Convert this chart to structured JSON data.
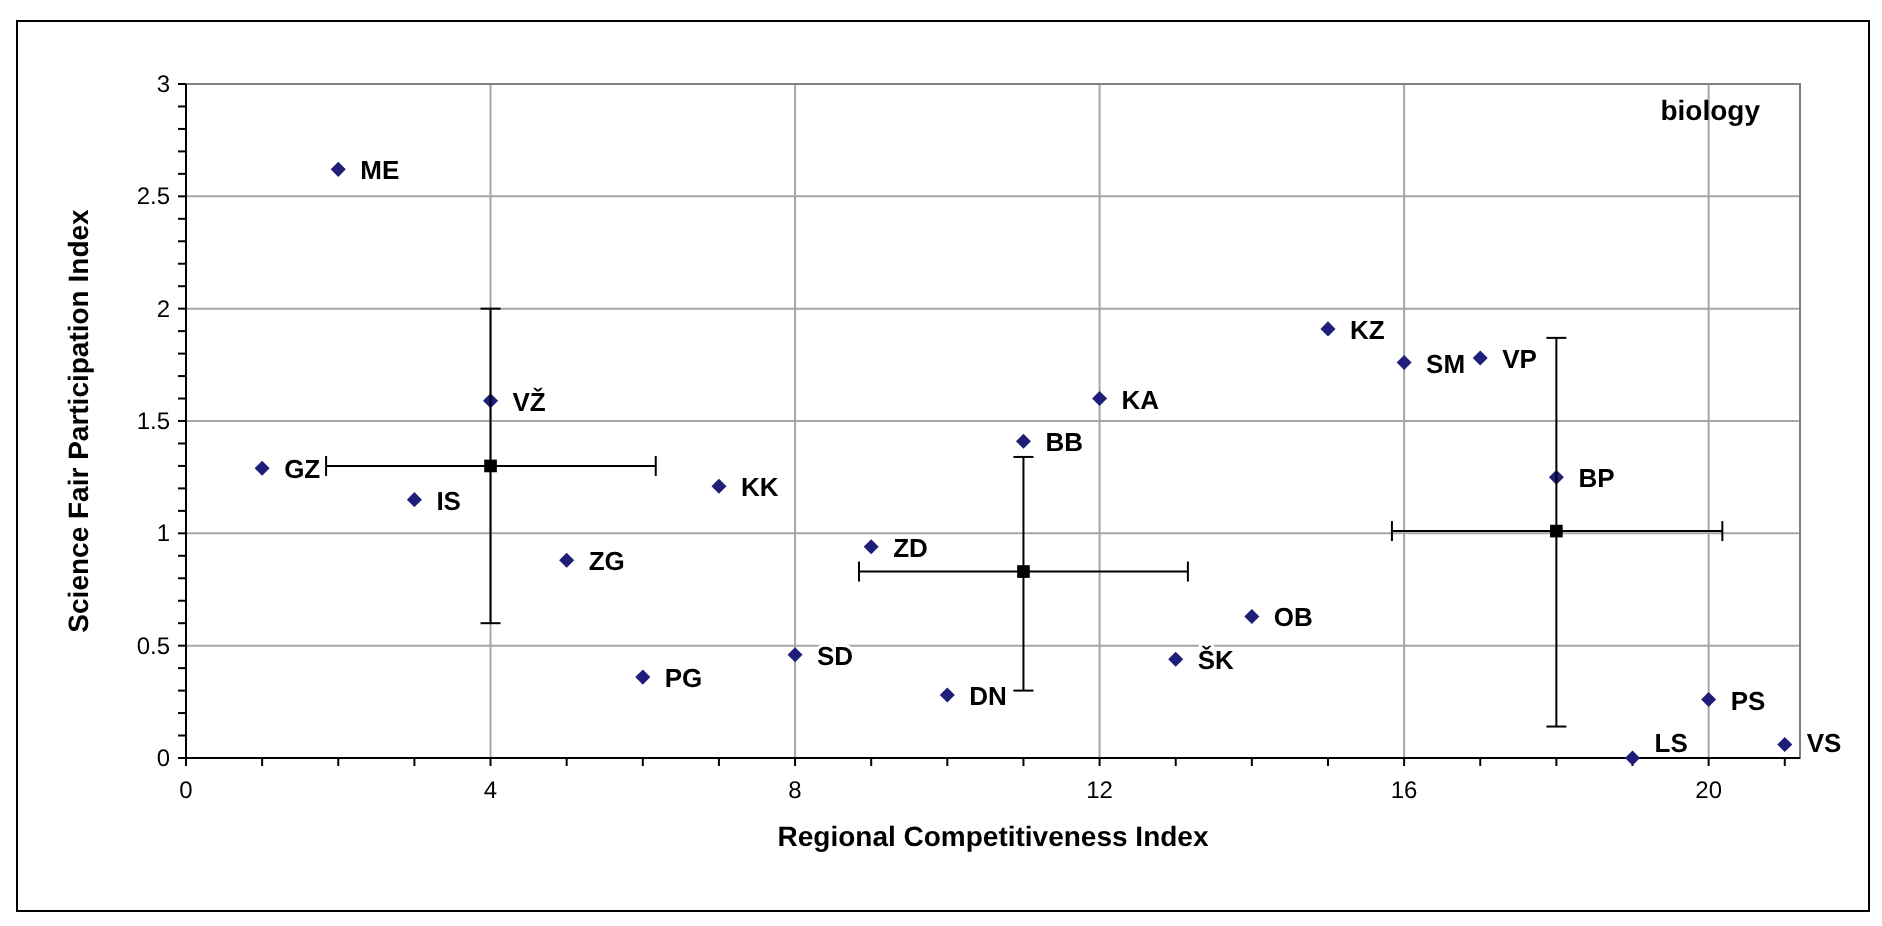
{
  "chart_data": {
    "type": "scatter",
    "title": "biology",
    "xlabel": "Regional Competitiveness Index",
    "ylabel": "Science Fair Participation Index",
    "xlim": [
      0,
      21.2
    ],
    "ylim": [
      0,
      3
    ],
    "xticks": [
      0,
      {
        "value": 1,
        "label": null
      },
      {
        "value": 2,
        "label": null
      },
      {
        "value": 3,
        "label": null
      },
      4,
      {
        "value": 5,
        "label": null
      },
      {
        "value": 6,
        "label": null
      },
      {
        "value": 7,
        "label": null
      },
      8,
      {
        "value": 9,
        "label": null
      },
      {
        "value": 10,
        "label": null
      },
      {
        "value": 11,
        "label": null
      },
      12,
      {
        "value": 13,
        "label": null
      },
      {
        "value": 14,
        "label": null
      },
      {
        "value": 15,
        "label": null
      },
      16,
      {
        "value": 17,
        "label": null
      },
      {
        "value": 18,
        "label": null
      },
      {
        "value": 19,
        "label": null
      },
      20,
      {
        "value": 21,
        "label": null
      }
    ],
    "yticks": [
      0,
      {
        "value": 0.1,
        "label": null
      },
      {
        "value": 0.2,
        "label": null
      },
      {
        "value": 0.3,
        "label": null
      },
      {
        "value": 0.4,
        "label": null
      },
      0.5,
      {
        "value": 0.6,
        "label": null
      },
      {
        "value": 0.7,
        "label": null
      },
      {
        "value": 0.8,
        "label": null
      },
      {
        "value": 0.9,
        "label": null
      },
      1,
      {
        "value": 1.1,
        "label": null
      },
      {
        "value": 1.2,
        "label": null
      },
      {
        "value": 1.3,
        "label": null
      },
      {
        "value": 1.4,
        "label": null
      },
      1.5,
      {
        "value": 1.6,
        "label": null
      },
      {
        "value": 1.7,
        "label": null
      },
      {
        "value": 1.8,
        "label": null
      },
      {
        "value": 1.9,
        "label": null
      },
      2,
      {
        "value": 2.1,
        "label": null
      },
      {
        "value": 2.2,
        "label": null
      },
      {
        "value": 2.3,
        "label": null
      },
      {
        "value": 2.4,
        "label": null
      },
      2.5,
      {
        "value": 2.6,
        "label": null
      },
      {
        "value": 2.7,
        "label": null
      },
      {
        "value": 2.8,
        "label": null
      },
      {
        "value": 2.9,
        "label": null
      },
      3
    ],
    "grid": true,
    "series": [
      {
        "color": "#1f1f7a",
        "marker": "diamond",
        "x": [
          2,
          4,
          1,
          3,
          7,
          5,
          9,
          6,
          8,
          10,
          11,
          12,
          15,
          16,
          17,
          18,
          14,
          13,
          20,
          21,
          19
        ],
        "values": [
          2.62,
          1.59,
          1.29,
          1.15,
          1.21,
          0.88,
          0.94,
          0.36,
          0.46,
          0.28,
          1.41,
          1.6,
          1.91,
          1.76,
          1.78,
          1.25,
          0.63,
          0.44,
          0.26,
          0.06,
          0
        ]
      },
      {
        "color": "#000000",
        "marker": "square",
        "x": [
          4,
          11,
          18
        ],
        "values": [
          1.3,
          0.83,
          1.01
        ],
        "errors": [
          [
            0.6,
            2.0
          ],
          [
            0.3,
            1.34
          ],
          [
            0.14,
            1.87
          ]
        ],
        "xerrors": [
          [
            1.84,
            6.17
          ],
          [
            8.84,
            13.16
          ],
          [
            15.84,
            20.18
          ]
        ]
      }
    ],
    "annotations": [
      {
        "text": "ME",
        "x": 2,
        "y": 2.62
      },
      {
        "text": "VŽ",
        "x": 4,
        "y": 1.59
      },
      {
        "text": "GZ",
        "x": 1,
        "y": 1.29
      },
      {
        "text": "IS",
        "x": 3,
        "y": 1.15
      },
      {
        "text": "KK",
        "x": 7,
        "y": 1.21
      },
      {
        "text": "ZG",
        "x": 5,
        "y": 0.88
      },
      {
        "text": "ZD",
        "x": 9,
        "y": 0.94
      },
      {
        "text": "PG",
        "x": 6,
        "y": 0.36
      },
      {
        "text": "SD",
        "x": 8,
        "y": 0.46
      },
      {
        "text": "DN",
        "x": 10,
        "y": 0.28
      },
      {
        "text": "BB",
        "x": 11,
        "y": 1.41
      },
      {
        "text": "KA",
        "x": 12,
        "y": 1.6
      },
      {
        "text": "KZ",
        "x": 15,
        "y": 1.91
      },
      {
        "text": "SM",
        "x": 16,
        "y": 1.76
      },
      {
        "text": "VP",
        "x": 17,
        "y": 1.78
      },
      {
        "text": "BP",
        "x": 18,
        "y": 1.25
      },
      {
        "text": "OB",
        "x": 14,
        "y": 0.63
      },
      {
        "text": "ŠK",
        "x": 13,
        "y": 0.44
      },
      {
        "text": "PS",
        "x": 20,
        "y": 0.26
      },
      {
        "text": "VS",
        "x": 21,
        "y": 0.06
      },
      {
        "text": "LS",
        "x": 19,
        "y": 0
      }
    ]
  }
}
